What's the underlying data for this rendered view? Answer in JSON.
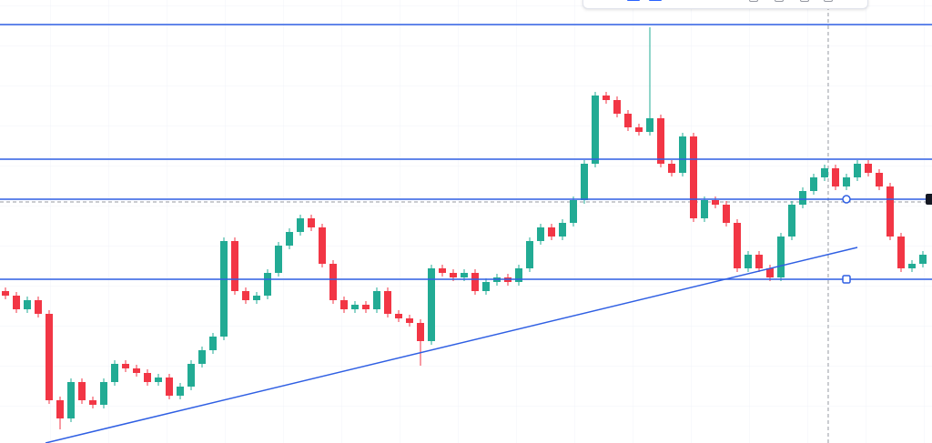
{
  "chart_data": {
    "type": "candlestick",
    "colors": {
      "up": "#22ab94",
      "down": "#f23645",
      "drawing": "#2f5fe3"
    },
    "ylim": [
      0,
      487
    ],
    "open": [
      167,
      162,
      147,
      157,
      142,
      47,
      27,
      67,
      47,
      42,
      67,
      87,
      82,
      77,
      67,
      72,
      52,
      62,
      87,
      102,
      117,
      222,
      167,
      157,
      162,
      187,
      217,
      232,
      247,
      237,
      197,
      157,
      147,
      152,
      147,
      167,
      142,
      137,
      132,
      112,
      192,
      187,
      182,
      187,
      167,
      177,
      182,
      177,
      192,
      222,
      237,
      227,
      242,
      267,
      307,
      382,
      377,
      362,
      347,
      342,
      357,
      307,
      297,
      337,
      247,
      267,
      262,
      242,
      192,
      207,
      192,
      182,
      227,
      262,
      277,
      292,
      302,
      282,
      292,
      307,
      297,
      282,
      227,
      192,
      197
    ],
    "high": [
      171,
      166,
      161,
      161,
      146,
      51,
      71,
      71,
      51,
      71,
      91,
      91,
      86,
      81,
      76,
      76,
      66,
      91,
      106,
      121,
      226,
      226,
      171,
      166,
      191,
      221,
      236,
      251,
      251,
      241,
      201,
      161,
      156,
      156,
      171,
      171,
      146,
      141,
      136,
      196,
      196,
      191,
      191,
      191,
      181,
      186,
      186,
      196,
      226,
      241,
      241,
      246,
      271,
      311,
      386,
      386,
      381,
      366,
      351,
      457,
      361,
      311,
      341,
      341,
      271,
      271,
      266,
      246,
      211,
      211,
      196,
      231,
      266,
      281,
      296,
      306,
      306,
      296,
      311,
      311,
      301,
      286,
      231,
      201,
      211
    ],
    "low": [
      158,
      143,
      143,
      138,
      43,
      15,
      23,
      43,
      38,
      38,
      63,
      78,
      73,
      63,
      63,
      48,
      48,
      58,
      83,
      98,
      113,
      163,
      153,
      153,
      158,
      183,
      213,
      228,
      233,
      193,
      153,
      143,
      143,
      143,
      143,
      138,
      133,
      128,
      85,
      108,
      183,
      178,
      178,
      163,
      163,
      173,
      173,
      173,
      188,
      218,
      223,
      223,
      238,
      263,
      303,
      373,
      358,
      343,
      338,
      338,
      303,
      293,
      293,
      243,
      243,
      258,
      238,
      188,
      188,
      188,
      178,
      178,
      223,
      258,
      273,
      288,
      278,
      278,
      288,
      293,
      278,
      223,
      188,
      188,
      193
    ],
    "close": [
      162,
      147,
      157,
      142,
      47,
      27,
      67,
      47,
      42,
      67,
      87,
      82,
      77,
      67,
      72,
      52,
      62,
      87,
      102,
      117,
      222,
      167,
      157,
      162,
      187,
      217,
      232,
      247,
      237,
      197,
      157,
      147,
      152,
      147,
      167,
      142,
      137,
      132,
      112,
      192,
      187,
      182,
      187,
      167,
      177,
      182,
      177,
      192,
      222,
      237,
      227,
      242,
      267,
      307,
      382,
      377,
      362,
      347,
      342,
      357,
      307,
      297,
      337,
      247,
      267,
      262,
      242,
      192,
      207,
      192,
      182,
      227,
      262,
      277,
      292,
      302,
      282,
      292,
      307,
      297,
      282,
      227,
      192,
      197,
      207
    ],
    "levels": [
      460,
      312,
      268,
      180
    ],
    "trendline": {
      "x": [
        3.67,
        78
      ],
      "y": [
        0,
        215
      ]
    },
    "crosshair": {
      "x": 75.33,
      "y": 265
    }
  }
}
